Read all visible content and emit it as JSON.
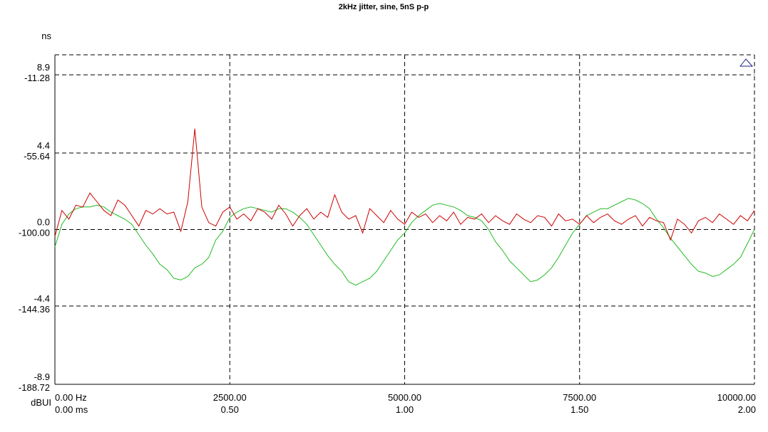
{
  "chart_data": {
    "type": "line",
    "title": "2kHz jitter, sine, 5nS p-p",
    "left_axis_unit": "ns",
    "bottom_axis_unit": "dBUI",
    "y_ticks_primary": [
      "8.9",
      "4.4",
      "0.0",
      "-4.4",
      "-8.9"
    ],
    "y_ticks_secondary": [
      "-11.28",
      "-55.64",
      "-100.00",
      "-144.36",
      "-188.72"
    ],
    "x_ticks_primary": [
      "0.00 Hz",
      "2500.00",
      "5000.00",
      "7500.00",
      "10000.00"
    ],
    "x_ticks_secondary": [
      "0.00 ms",
      "0.50",
      "1.00",
      "1.50",
      "2.00"
    ],
    "ylim": [
      -8.9,
      10.05
    ],
    "xlim": [
      0,
      2.0
    ],
    "grid": true,
    "grid_style": "dashed",
    "legend": "none",
    "colors": {
      "green": "#22bb22",
      "red": "#cc0000",
      "grid": "#000000",
      "marker": "#1a237e"
    },
    "series": [
      {
        "color": "green",
        "x_unit": "ms",
        "x": [
          0.0,
          0.02,
          0.04,
          0.06,
          0.08,
          0.1,
          0.12,
          0.14,
          0.16,
          0.18,
          0.2,
          0.22,
          0.24,
          0.26,
          0.28,
          0.3,
          0.32,
          0.34,
          0.36,
          0.38,
          0.4,
          0.42,
          0.44,
          0.46,
          0.48,
          0.5,
          0.52,
          0.54,
          0.56,
          0.58,
          0.6,
          0.62,
          0.64,
          0.66,
          0.68,
          0.7,
          0.72,
          0.74,
          0.76,
          0.78,
          0.8,
          0.82,
          0.84,
          0.86,
          0.88,
          0.9,
          0.92,
          0.94,
          0.96,
          0.98,
          1.0,
          1.02,
          1.04,
          1.06,
          1.08,
          1.1,
          1.12,
          1.14,
          1.16,
          1.18,
          1.2,
          1.22,
          1.24,
          1.26,
          1.28,
          1.3,
          1.32,
          1.34,
          1.36,
          1.38,
          1.4,
          1.42,
          1.44,
          1.46,
          1.48,
          1.5,
          1.52,
          1.54,
          1.56,
          1.58,
          1.6,
          1.62,
          1.64,
          1.66,
          1.68,
          1.7,
          1.72,
          1.74,
          1.76,
          1.78,
          1.8,
          1.82,
          1.84,
          1.86,
          1.88,
          1.9,
          1.92,
          1.94,
          1.96,
          1.98,
          2.0
        ],
        "y": [
          -1.0,
          0.3,
          0.9,
          1.2,
          1.3,
          1.3,
          1.4,
          1.3,
          1.0,
          0.8,
          0.6,
          0.3,
          -0.3,
          -0.9,
          -1.4,
          -2.0,
          -2.3,
          -2.8,
          -2.9,
          -2.7,
          -2.2,
          -2.0,
          -1.6,
          -0.6,
          -0.1,
          0.7,
          1.0,
          1.2,
          1.3,
          1.2,
          1.1,
          1.0,
          1.2,
          1.2,
          1.0,
          0.7,
          0.3,
          -0.3,
          -0.9,
          -1.5,
          -2.0,
          -2.4,
          -3.0,
          -3.2,
          -3.0,
          -2.8,
          -2.4,
          -1.8,
          -1.2,
          -0.6,
          -0.2,
          0.4,
          0.8,
          1.1,
          1.4,
          1.5,
          1.4,
          1.3,
          1.1,
          0.8,
          0.7,
          0.5,
          0.0,
          -0.7,
          -1.2,
          -1.8,
          -2.2,
          -2.6,
          -3.0,
          -2.9,
          -2.6,
          -2.2,
          -1.6,
          -0.9,
          -0.2,
          0.3,
          0.8,
          1.0,
          1.2,
          1.2,
          1.4,
          1.6,
          1.8,
          1.7,
          1.5,
          1.2,
          0.6,
          0.1,
          -0.5,
          -1.0,
          -1.5,
          -2.0,
          -2.4,
          -2.5,
          -2.7,
          -2.6,
          -2.3,
          -2.0,
          -1.6,
          -0.8,
          0.0
        ]
      },
      {
        "color": "red",
        "x_unit": "ms",
        "x": [
          0.0,
          0.02,
          0.04,
          0.06,
          0.08,
          0.1,
          0.12,
          0.14,
          0.16,
          0.18,
          0.2,
          0.22,
          0.24,
          0.26,
          0.28,
          0.3,
          0.32,
          0.34,
          0.36,
          0.38,
          0.4,
          0.42,
          0.44,
          0.46,
          0.48,
          0.5,
          0.52,
          0.54,
          0.56,
          0.58,
          0.6,
          0.62,
          0.64,
          0.66,
          0.68,
          0.7,
          0.72,
          0.74,
          0.76,
          0.78,
          0.8,
          0.82,
          0.84,
          0.86,
          0.88,
          0.9,
          0.92,
          0.94,
          0.96,
          0.98,
          1.0,
          1.02,
          1.04,
          1.06,
          1.08,
          1.1,
          1.12,
          1.14,
          1.16,
          1.18,
          1.2,
          1.22,
          1.24,
          1.26,
          1.28,
          1.3,
          1.32,
          1.34,
          1.36,
          1.38,
          1.4,
          1.42,
          1.44,
          1.46,
          1.48,
          1.5,
          1.52,
          1.54,
          1.56,
          1.58,
          1.6,
          1.62,
          1.64,
          1.66,
          1.68,
          1.7,
          1.72,
          1.74,
          1.76,
          1.78,
          1.8,
          1.82,
          1.84,
          1.86,
          1.88,
          1.9,
          1.92,
          1.94,
          1.96,
          1.98,
          2.0
        ],
        "y": [
          -0.4,
          1.1,
          0.6,
          1.4,
          1.3,
          2.1,
          1.6,
          1.1,
          0.8,
          1.7,
          1.4,
          0.8,
          0.2,
          1.1,
          0.9,
          1.2,
          0.9,
          1.0,
          -0.1,
          1.6,
          5.8,
          1.3,
          0.4,
          0.2,
          1.0,
          1.3,
          0.6,
          0.9,
          0.5,
          1.2,
          1.0,
          0.6,
          1.4,
          0.9,
          0.2,
          0.8,
          1.2,
          0.6,
          1.0,
          0.7,
          2.0,
          1.0,
          0.6,
          0.8,
          -0.2,
          1.2,
          0.8,
          0.4,
          1.1,
          0.6,
          0.3,
          1.0,
          0.7,
          0.9,
          0.4,
          0.8,
          0.5,
          1.0,
          0.3,
          0.7,
          0.6,
          0.9,
          0.4,
          0.8,
          0.5,
          0.3,
          0.9,
          0.6,
          0.4,
          0.8,
          0.7,
          0.2,
          0.9,
          0.5,
          0.6,
          0.3,
          0.8,
          0.4,
          0.7,
          0.9,
          0.5,
          0.3,
          0.6,
          0.8,
          0.2,
          0.7,
          0.5,
          0.4,
          -0.6,
          0.6,
          0.3,
          -0.2,
          0.5,
          0.7,
          0.4,
          0.9,
          0.6,
          0.3,
          0.8,
          0.5,
          1.1
        ]
      }
    ]
  }
}
